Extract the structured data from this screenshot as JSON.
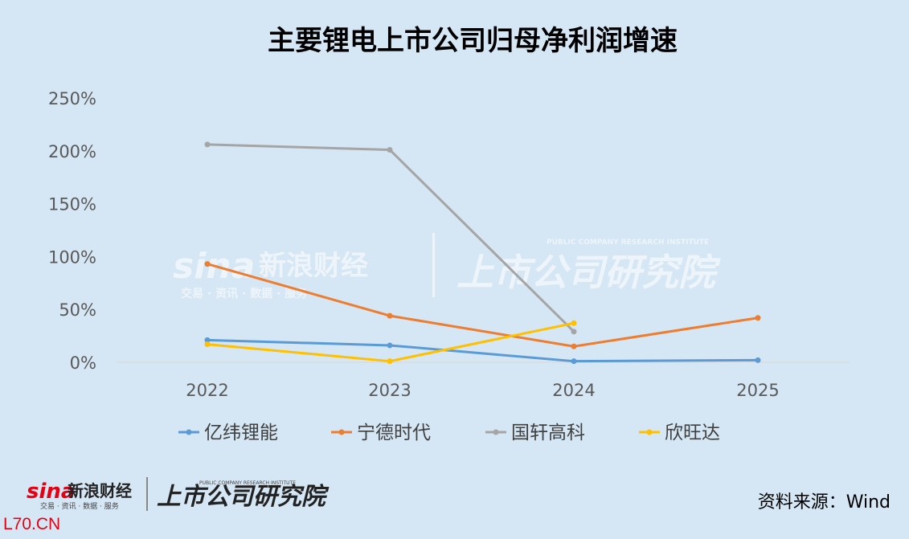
{
  "chart_data": {
    "type": "line",
    "title": "主要锂电上市公司归母净利润增速",
    "categories": [
      "2022",
      "2023",
      "2024",
      "2025"
    ],
    "yticks": [
      "250%",
      "200%",
      "150%",
      "100%",
      "50%",
      "0%"
    ],
    "ylim": [
      0,
      250
    ],
    "grid": false,
    "legend_position": "bottom",
    "series": [
      {
        "name": "亿纬锂能",
        "color": "#5b9bd5",
        "values": [
          21,
          16,
          1,
          2
        ]
      },
      {
        "name": "宁德时代",
        "color": "#ed7d31",
        "values": [
          93,
          44,
          15,
          42
        ]
      },
      {
        "name": "国轩高科",
        "color": "#a5a5a5",
        "values": [
          206,
          201,
          29,
          null
        ]
      },
      {
        "name": "欣旺达",
        "color": "#ffc000",
        "values": [
          17,
          1,
          37,
          null
        ]
      }
    ]
  },
  "watermark": {
    "sina": "sina",
    "sina_cn": "新浪财经",
    "sina_sub": "交易 · 资讯 · 数据 · 服务",
    "institute": "上市公司研究院",
    "institute_en": "PUBLIC COMPANY RESEARCH INSTITUTE"
  },
  "footer": {
    "source": "资料来源：Wind",
    "corner": "L70.CN",
    "logo_sina": "sina",
    "logo_sina_cn": "新浪财经",
    "logo_sub": "交易 · 资讯 · 数据 · 服务",
    "logo_institute": "上市公司研究院",
    "logo_institute_en": "PUBLIC COMPANY RESEARCH INSTITUTE"
  }
}
